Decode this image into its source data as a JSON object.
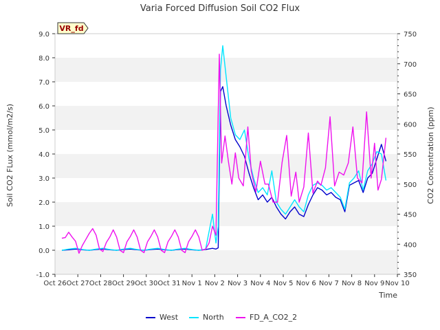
{
  "chart_data": {
    "type": "line",
    "title": "Varia Forced Diffusion Soil CO2 Flux",
    "xlabel": "Time",
    "ylabel": "Soil CO2 FLux (mmol/m2/s)",
    "y2label": "CO2 Concentration (ppm)",
    "badge": "VR_fd",
    "x_ticks": [
      "Oct 26",
      "Oct 27",
      "Oct 28",
      "Oct 29",
      "Oct 30",
      "Oct 31",
      "Nov 1",
      "Nov 2",
      "Nov 3",
      "Nov 4",
      "Nov 5",
      "Nov 6",
      "Nov 7",
      "Nov 8",
      "Nov 9",
      "Nov 10"
    ],
    "xlim": [
      0,
      15
    ],
    "ylim": [
      -1.0,
      9.0
    ],
    "y_ticks": [
      "-1.0",
      "0.0",
      "1.0",
      "2.0",
      "3.0",
      "4.0",
      "5.0",
      "6.0",
      "7.0",
      "8.0",
      "9.0"
    ],
    "y2lim": [
      350,
      750
    ],
    "y2_ticks": [
      "350",
      "400",
      "450",
      "500",
      "550",
      "600",
      "650",
      "700",
      "750"
    ],
    "grid": "horizontal bands",
    "legend_position": "bottom-center",
    "series": [
      {
        "name": "West",
        "color": "#0000cc",
        "axis": "left",
        "x": [
          0.3,
          0.6,
          0.9,
          1.2,
          1.5,
          1.8,
          2.1,
          2.4,
          2.7,
          3.0,
          3.3,
          3.6,
          3.9,
          4.2,
          4.5,
          4.8,
          5.1,
          5.4,
          5.7,
          6.0,
          6.3,
          6.6,
          6.9,
          7.05,
          7.15,
          7.25,
          7.35,
          7.5,
          7.7,
          7.9,
          8.1,
          8.3,
          8.5,
          8.7,
          8.9,
          9.1,
          9.3,
          9.5,
          9.7,
          9.9,
          10.1,
          10.3,
          10.5,
          10.7,
          10.9,
          11.1,
          11.3,
          11.5,
          11.7,
          11.9,
          12.1,
          12.3,
          12.5,
          12.7,
          12.9,
          13.1,
          13.3,
          13.5,
          13.7,
          13.9,
          14.1,
          14.3,
          14.5
        ],
        "y": [
          0.0,
          0.02,
          0.05,
          0.02,
          0.0,
          0.03,
          0.05,
          0.02,
          0.0,
          0.03,
          0.05,
          0.02,
          0.0,
          0.03,
          0.05,
          0.02,
          0.0,
          0.03,
          0.05,
          0.02,
          0.0,
          0.03,
          0.08,
          0.05,
          0.1,
          6.6,
          6.8,
          6.0,
          5.2,
          4.6,
          4.3,
          3.9,
          3.2,
          2.6,
          2.1,
          2.3,
          2.0,
          2.2,
          1.8,
          1.5,
          1.3,
          1.6,
          1.8,
          1.5,
          1.4,
          1.9,
          2.3,
          2.6,
          2.5,
          2.3,
          2.4,
          2.2,
          2.1,
          1.6,
          2.7,
          2.8,
          2.9,
          2.4,
          3.0,
          3.2,
          3.8,
          4.4,
          3.7
        ]
      },
      {
        "name": "North",
        "color": "#00e5ff",
        "axis": "left",
        "x": [
          0.3,
          0.6,
          0.9,
          1.2,
          1.5,
          1.8,
          2.1,
          2.4,
          2.7,
          3.0,
          3.3,
          3.6,
          3.9,
          4.2,
          4.5,
          4.8,
          5.1,
          5.4,
          5.7,
          6.0,
          6.3,
          6.6,
          6.9,
          7.05,
          7.15,
          7.25,
          7.35,
          7.5,
          7.7,
          7.9,
          8.1,
          8.3,
          8.5,
          8.7,
          8.9,
          9.1,
          9.3,
          9.5,
          9.7,
          9.9,
          10.1,
          10.3,
          10.5,
          10.7,
          10.9,
          11.1,
          11.3,
          11.5,
          11.7,
          11.9,
          12.1,
          12.3,
          12.5,
          12.7,
          12.9,
          13.1,
          13.3,
          13.5,
          13.7,
          13.9,
          14.1,
          14.3,
          14.5
        ],
        "y": [
          0.0,
          0.05,
          0.08,
          0.03,
          0.0,
          0.05,
          0.08,
          0.03,
          0.0,
          0.05,
          0.08,
          0.03,
          0.0,
          0.05,
          0.08,
          0.03,
          0.0,
          0.05,
          0.08,
          0.03,
          0.0,
          0.05,
          1.5,
          0.3,
          1.0,
          7.5,
          8.5,
          7.2,
          5.5,
          4.8,
          4.6,
          5.0,
          3.8,
          3.0,
          2.4,
          2.6,
          2.3,
          3.3,
          2.0,
          1.7,
          1.5,
          1.8,
          2.1,
          1.8,
          1.6,
          2.3,
          2.7,
          2.8,
          2.7,
          2.5,
          2.6,
          2.4,
          2.2,
          1.7,
          2.8,
          3.0,
          3.3,
          2.5,
          3.3,
          3.6,
          4.1,
          4.0,
          2.9
        ]
      },
      {
        "name": "FD_A_CO2_2",
        "color": "#ee11ee",
        "axis": "right",
        "x": [
          0.3,
          0.45,
          0.6,
          0.75,
          0.9,
          1.05,
          1.2,
          1.35,
          1.5,
          1.65,
          1.8,
          1.95,
          2.1,
          2.25,
          2.4,
          2.55,
          2.7,
          2.85,
          3.0,
          3.15,
          3.3,
          3.45,
          3.6,
          3.75,
          3.9,
          4.05,
          4.2,
          4.35,
          4.5,
          4.65,
          4.8,
          4.95,
          5.1,
          5.25,
          5.4,
          5.55,
          5.7,
          5.85,
          6.0,
          6.15,
          6.3,
          6.45,
          6.6,
          6.75,
          6.9,
          7.05,
          7.2,
          7.3,
          7.45,
          7.6,
          7.75,
          7.9,
          8.05,
          8.25,
          8.45,
          8.6,
          8.8,
          9.0,
          9.2,
          9.35,
          9.55,
          9.75,
          9.95,
          10.15,
          10.35,
          10.55,
          10.7,
          10.9,
          11.1,
          11.3,
          11.5,
          11.65,
          11.85,
          12.05,
          12.25,
          12.45,
          12.65,
          12.85,
          13.05,
          13.25,
          13.45,
          13.65,
          13.85,
          14.0,
          14.15,
          14.3,
          14.5
        ],
        "y": [
          410,
          411,
          420,
          412,
          405,
          385,
          398,
          408,
          418,
          426,
          415,
          392,
          388,
          403,
          412,
          424,
          412,
          390,
          386,
          404,
          413,
          424,
          412,
          390,
          386,
          404,
          413,
          424,
          412,
          390,
          386,
          404,
          413,
          424,
          412,
          390,
          386,
          404,
          413,
          424,
          412,
          390,
          392,
          402,
          430,
          415,
          716,
          535,
          580,
          537,
          500,
          552,
          510,
          497,
          595,
          521,
          487,
          538,
          500,
          500,
          470,
          470,
          536,
          581,
          480,
          520,
          470,
          495,
          585,
          485,
          505,
          498,
          527,
          612,
          497,
          520,
          515,
          535,
          595,
          510,
          502,
          620,
          510,
          568,
          490,
          508,
          577
        ]
      }
    ]
  },
  "legend": {
    "items": [
      {
        "label": "West",
        "color": "#0000cc"
      },
      {
        "label": "North",
        "color": "#00e5ff"
      },
      {
        "label": "FD_A_CO2_2",
        "color": "#ee11ee"
      }
    ]
  }
}
